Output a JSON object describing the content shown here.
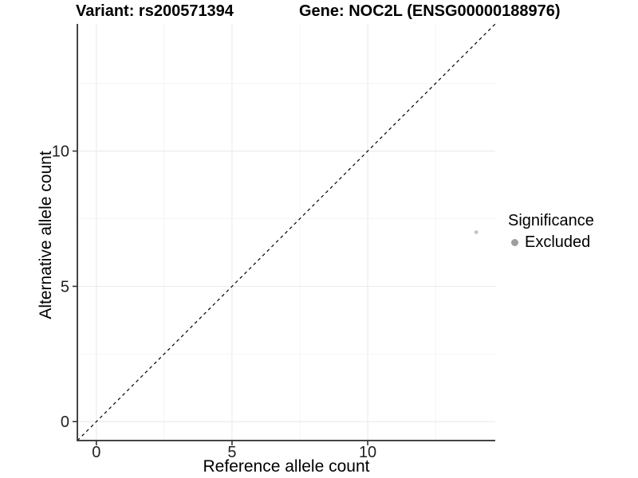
{
  "chart_data": {
    "type": "scatter",
    "title_left": "Variant: rs200571394",
    "title_right": "Gene: NOC2L (ENSG00000188976)",
    "xlabel": "Reference allele count",
    "ylabel": "Alternative allele count",
    "xlim": [
      -0.7,
      14.7
    ],
    "ylim": [
      -0.7,
      14.7
    ],
    "x_major_ticks": [
      0,
      5,
      10
    ],
    "y_major_ticks": [
      0,
      5,
      10
    ],
    "x_minor_gridlines": [
      2.5,
      7.5,
      12.5
    ],
    "y_minor_gridlines": [
      2.5,
      7.5,
      12.5
    ],
    "grid": "major+minor",
    "legend_position": "right",
    "legend_title": "Significance",
    "identity_line": {
      "slope": 1,
      "intercept": 0,
      "style": "dashed",
      "color": "#000000"
    },
    "series": [
      {
        "name": "Excluded",
        "color": "#c4c4c4",
        "points": [
          [
            14,
            7
          ]
        ]
      }
    ]
  },
  "style": {
    "background": "#ffffff",
    "grid_major": "#ececec",
    "grid_minor": "#f4f4f4",
    "axis_line": "#444444",
    "tick_color": "#333333",
    "tick_label_color": "#222222",
    "legend_key_color": "#9e9e9e",
    "point_radius": 2.4
  }
}
